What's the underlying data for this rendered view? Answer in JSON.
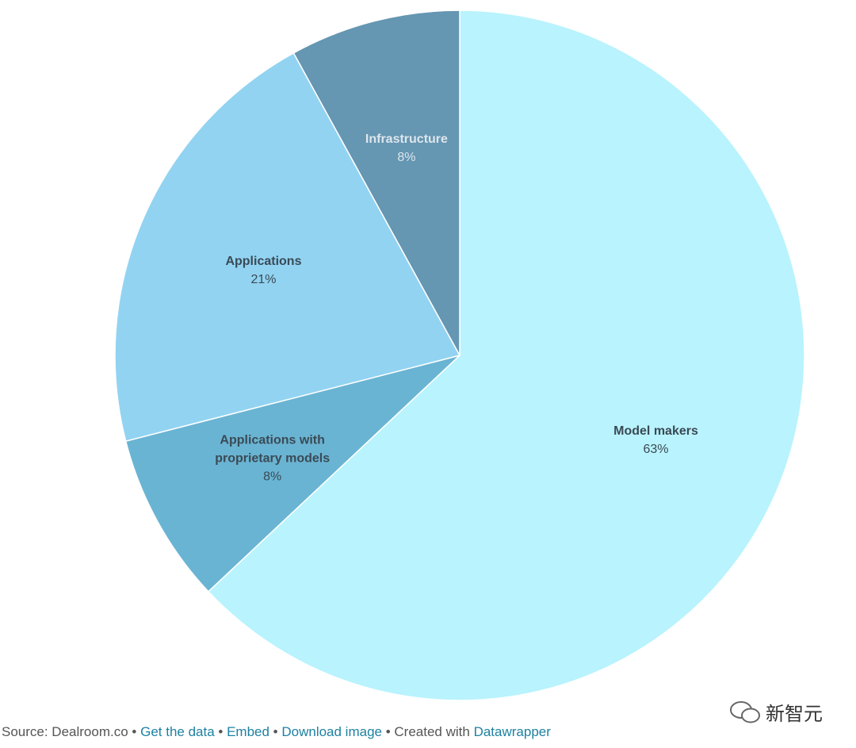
{
  "chart_data": {
    "type": "pie",
    "categories": [
      "Model makers",
      "Applications with proprietary models",
      "Applications",
      "Infrastructure"
    ],
    "values": [
      63,
      8,
      21,
      8
    ],
    "value_labels": [
      "63%",
      "8%",
      "21%",
      "8%"
    ],
    "colors": [
      "#b9f3fd",
      "#6ab4d3",
      "#92d3f2",
      "#6596b2"
    ]
  },
  "footer": {
    "source": "Source: Dealroom.co",
    "links": [
      "Get the data",
      "Embed",
      "Download image"
    ],
    "created": "Created with",
    "credit": "Datawrapper"
  },
  "watermark": "新智元"
}
